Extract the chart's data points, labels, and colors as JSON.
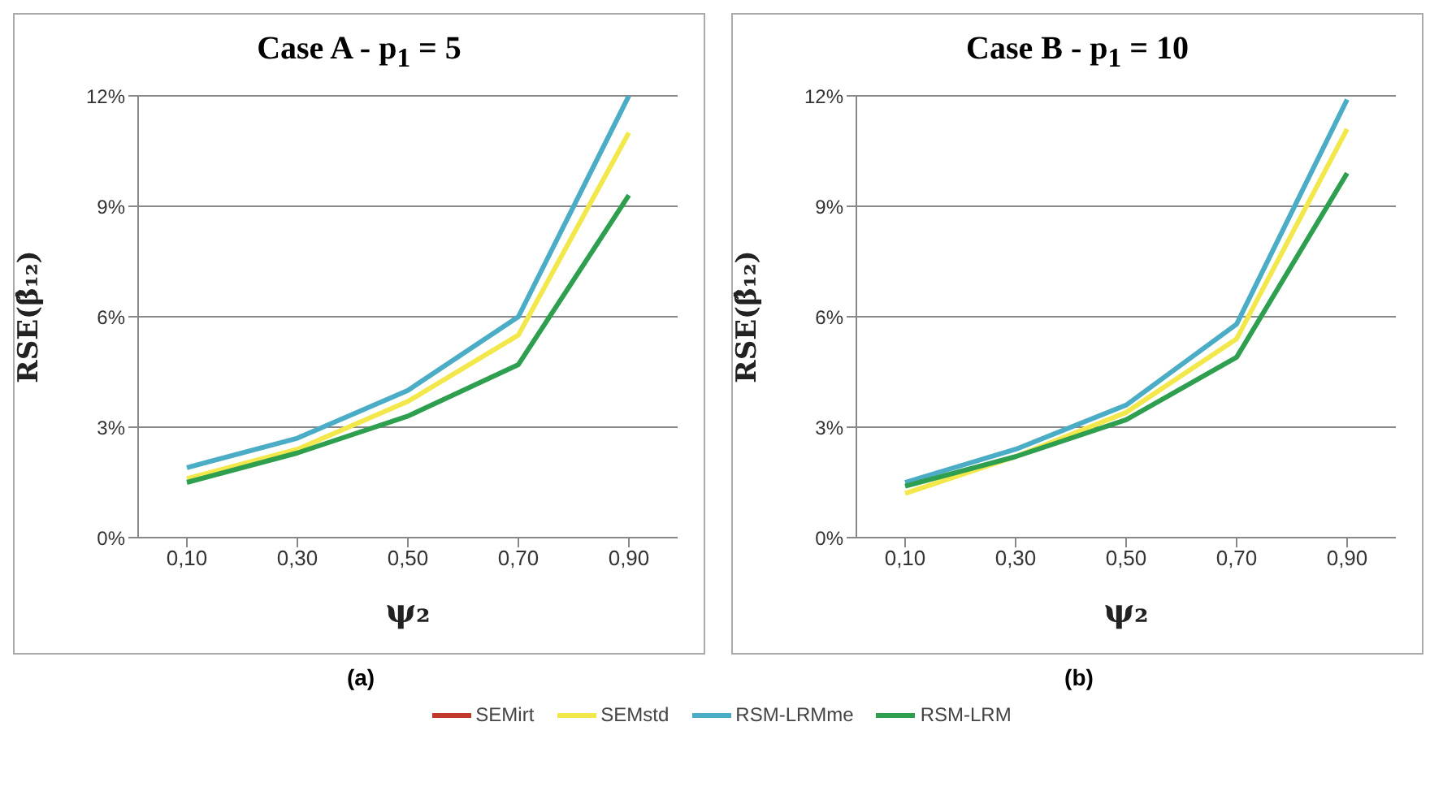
{
  "chart_data": [
    {
      "type": "line",
      "title": "Case A  -  p$_{1}$ = 5",
      "xlabel": "ψ₂",
      "ylabel": "RSE(β̂₁₂)",
      "categories": [
        "0,10",
        "0,30",
        "0,50",
        "0,70",
        "0,90"
      ],
      "series": [
        {
          "name": "SEMirt",
          "color": "#c0392b",
          "values": [
            null,
            null,
            null,
            null,
            null
          ]
        },
        {
          "name": "SEMstd",
          "color": "#f2e84b",
          "values": [
            1.6,
            2.4,
            3.7,
            5.5,
            11.0
          ]
        },
        {
          "name": "RSM-LRMme",
          "color": "#4bacc6",
          "values": [
            1.9,
            2.7,
            4.0,
            6.0,
            12.0
          ]
        },
        {
          "name": "RSM-LRM",
          "color": "#2e9e4f",
          "values": [
            1.5,
            2.3,
            3.3,
            4.7,
            9.3
          ]
        }
      ],
      "ylim": [
        0,
        12
      ],
      "yticks": [
        {
          "value": 0,
          "label": "0%"
        },
        {
          "value": 3,
          "label": "3%"
        },
        {
          "value": 6,
          "label": "6%"
        },
        {
          "value": 9,
          "label": "9%"
        },
        {
          "value": 12,
          "label": "12%"
        }
      ],
      "grid": "y",
      "legend": "bottom",
      "annotations": [
        "(a)"
      ]
    },
    {
      "type": "line",
      "title": "Case B  -  p$_{1}$ = 10",
      "xlabel": "ψ₂",
      "ylabel": "RSE(β̂₁₂)",
      "categories": [
        "0,10",
        "0,30",
        "0,50",
        "0,70",
        "0,90"
      ],
      "series": [
        {
          "color": "#f2e84b",
          "values": [
            1.2,
            2.2,
            3.4,
            5.4,
            11.1
          ]
        },
        {
          "color": "#4bacc6",
          "values": [
            1.5,
            2.4,
            3.6,
            5.8,
            11.9
          ]
        },
        {
          "color": "#2e9e4f",
          "values": [
            1.4,
            2.2,
            3.2,
            4.9,
            9.9
          ]
        }
      ],
      "ylim": [
        0,
        12
      ],
      "yticks": [
        {
          "value": 0,
          "label": "0%"
        },
        {
          "value": 3,
          "label": "3%"
        },
        {
          "value": 6,
          "label": "6%"
        },
        {
          "value": 9,
          "label": "9%"
        },
        {
          "value": 12,
          "label": "12%"
        }
      ],
      "grid": "y",
      "annotations": [
        "(b)"
      ]
    }
  ]
}
